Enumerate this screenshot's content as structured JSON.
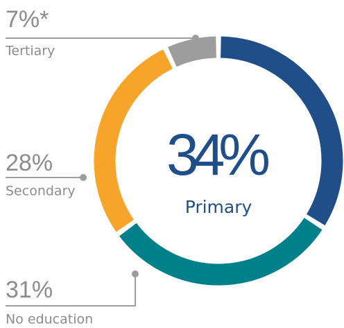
{
  "chart_data": {
    "type": "donut",
    "categories": [
      "Primary",
      "No education",
      "Secondary",
      "Tertiary"
    ],
    "values": [
      34,
      31,
      28,
      7
    ],
    "value_labels": [
      "34%",
      "31%",
      "28%",
      "7%*"
    ],
    "colors": [
      "#1f4e89",
      "#00808a",
      "#f6a52a",
      "#9d9d9d"
    ]
  }
}
